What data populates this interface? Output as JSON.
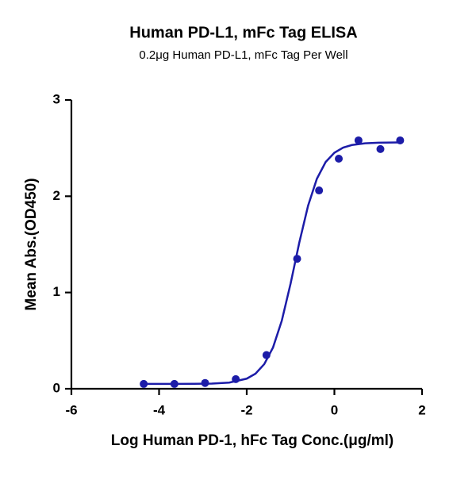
{
  "chart_data": {
    "type": "scatter",
    "title": "Human PD-L1, mFc Tag ELISA",
    "subtitle": "0.2μg Human PD-L1, mFc Tag Per Well",
    "x_label": "Log Human PD-1, hFc Tag Conc.(μg/ml)",
    "y_label": "Mean Abs.(OD450)",
    "color": "#1c1ca8",
    "x": [
      -4.35,
      -3.65,
      -2.95,
      -2.25,
      -1.55,
      -0.85,
      -0.35,
      0.1,
      0.55,
      1.05,
      1.5
    ],
    "values": [
      0.05,
      0.05,
      0.06,
      0.1,
      0.35,
      1.35,
      2.06,
      2.39,
      2.58,
      2.49,
      2.58
    ],
    "curve": {
      "x": [
        -4.4,
        -4.0,
        -3.6,
        -3.2,
        -2.8,
        -2.4,
        -2.0,
        -1.8,
        -1.6,
        -1.4,
        -1.2,
        -1.0,
        -0.8,
        -0.6,
        -0.4,
        -0.2,
        0.0,
        0.2,
        0.4,
        0.7,
        1.0,
        1.5
      ],
      "values": [
        0.05,
        0.05,
        0.05,
        0.051,
        0.054,
        0.064,
        0.105,
        0.157,
        0.256,
        0.429,
        0.707,
        1.091,
        1.52,
        1.902,
        2.181,
        2.355,
        2.452,
        2.505,
        2.532,
        2.55,
        2.556,
        2.559
      ]
    },
    "xlim": [
      -6,
      2
    ],
    "xticks": [
      -6,
      -4,
      -2,
      0,
      2
    ],
    "ylim": [
      0,
      3
    ],
    "yticks": [
      0,
      1,
      2,
      3
    ],
    "grid": false
  }
}
